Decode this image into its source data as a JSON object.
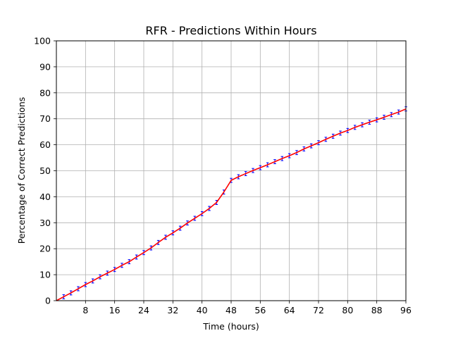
{
  "chart_data": {
    "type": "line",
    "title": "RFR - Predictions Within Hours",
    "xlabel": "Time (hours)",
    "ylabel": "Percentage of Correct Predictions",
    "xlim": [
      0,
      96
    ],
    "ylim": [
      0,
      100
    ],
    "xticks": [
      8,
      16,
      24,
      32,
      40,
      48,
      56,
      64,
      72,
      80,
      88,
      96
    ],
    "yticks": [
      0,
      10,
      20,
      30,
      40,
      50,
      60,
      70,
      80,
      90,
      100
    ],
    "grid": true,
    "line_color": "#ff0000",
    "errorbar_color": "#0000ff",
    "error": 0.8,
    "x": [
      0,
      2,
      4,
      6,
      8,
      10,
      12,
      14,
      16,
      18,
      20,
      22,
      24,
      26,
      28,
      30,
      32,
      34,
      36,
      38,
      40,
      42,
      44,
      46,
      48,
      50,
      52,
      54,
      56,
      58,
      60,
      62,
      64,
      66,
      68,
      70,
      72,
      74,
      76,
      78,
      80,
      82,
      84,
      86,
      88,
      90,
      92,
      94,
      96
    ],
    "y": [
      0,
      1.5,
      3.0,
      4.6,
      6.2,
      7.6,
      9.2,
      10.6,
      12.0,
      13.6,
      15.0,
      16.8,
      18.5,
      20.3,
      22.4,
      24.4,
      26.1,
      27.9,
      29.9,
      31.7,
      33.5,
      35.5,
      37.8,
      41.8,
      46.3,
      47.7,
      48.9,
      50.1,
      51.2,
      52.3,
      53.5,
      54.7,
      55.8,
      57.0,
      58.4,
      59.6,
      60.8,
      62.1,
      63.3,
      64.5,
      65.5,
      66.7,
      67.7,
      68.7,
      69.6,
      70.6,
      71.6,
      72.6,
      73.8
    ]
  }
}
